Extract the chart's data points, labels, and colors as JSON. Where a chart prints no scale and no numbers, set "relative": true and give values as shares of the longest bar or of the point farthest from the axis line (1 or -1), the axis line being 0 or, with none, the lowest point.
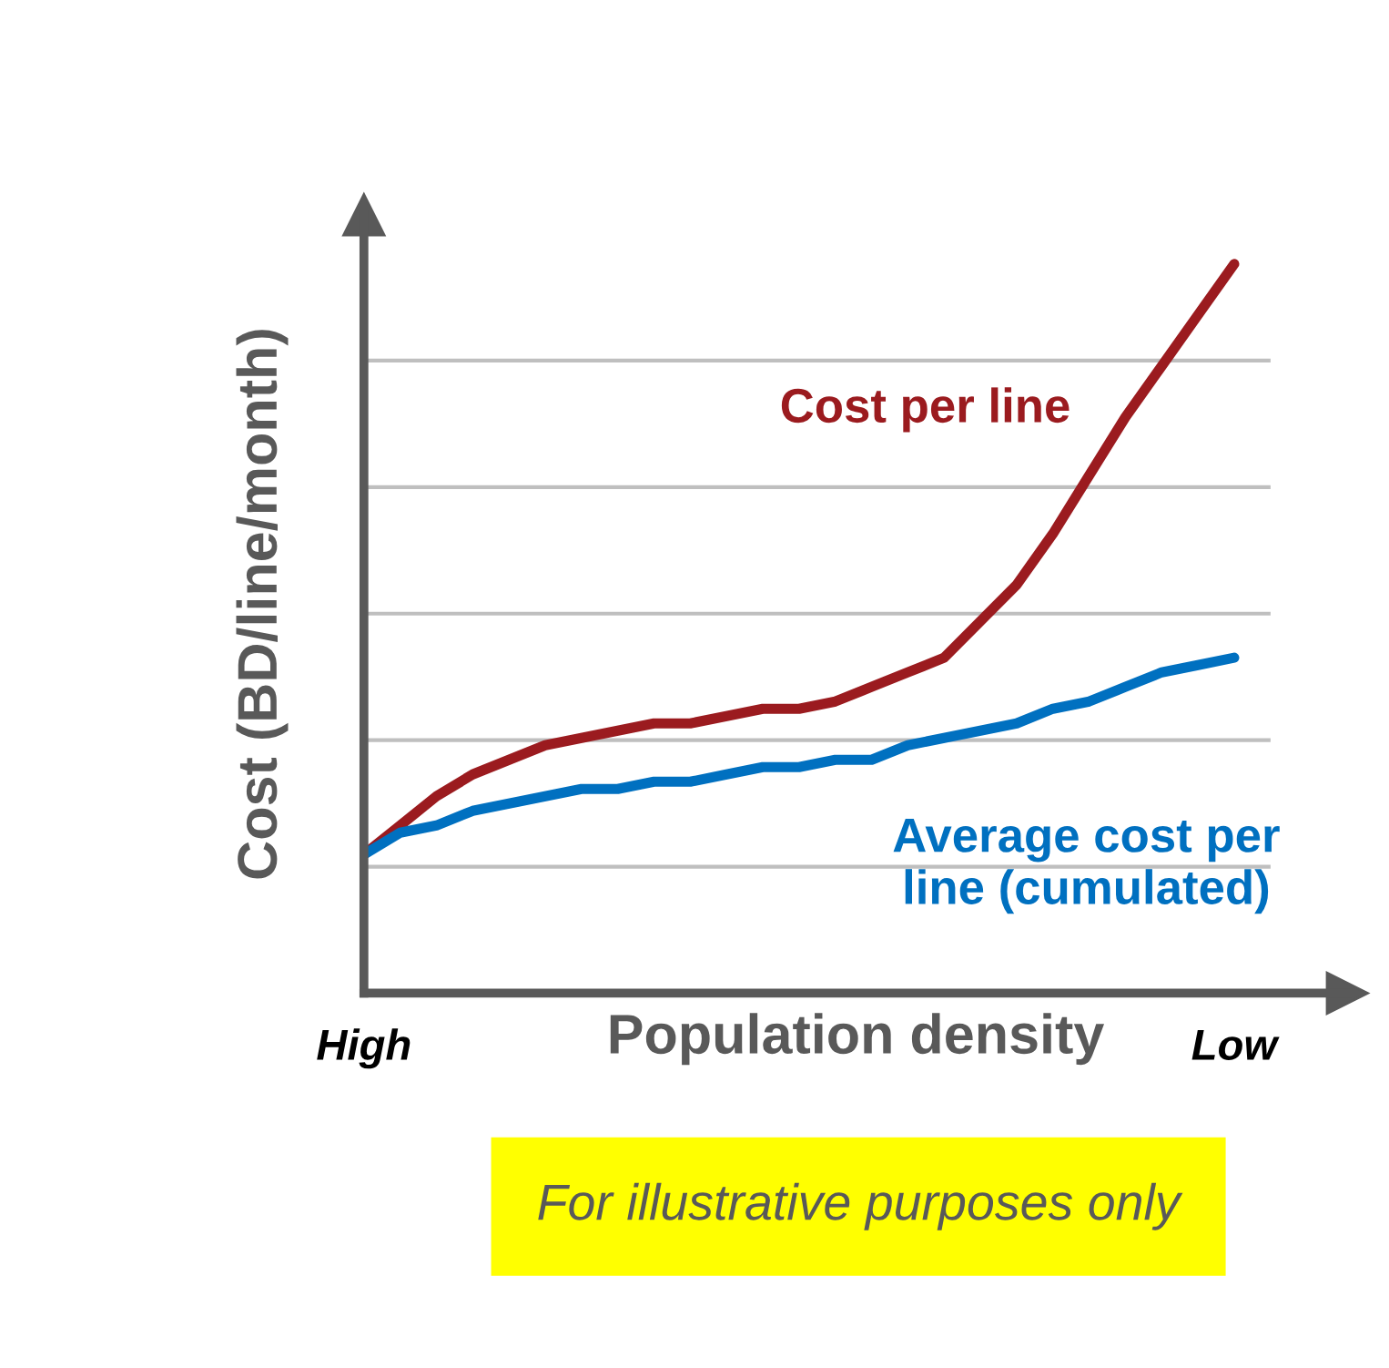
{
  "chart_data": {
    "type": "line",
    "relative": true,
    "xlabel": "Population density",
    "ylabel": "Cost (BD/line/month)",
    "categories": [
      "High",
      null,
      null,
      null,
      null,
      null,
      null,
      null,
      null,
      null,
      null,
      null,
      null,
      null,
      null,
      null,
      null,
      null,
      null,
      null,
      null,
      null,
      null,
      null,
      "Low"
    ],
    "grid": "y",
    "series": [
      {
        "name": "Cost per line",
        "color": "#9b1b1f",
        "values": [
          0.19,
          0.23,
          0.27,
          0.3,
          0.32,
          0.34,
          0.35,
          0.36,
          0.37,
          0.37,
          0.38,
          0.39,
          0.39,
          0.4,
          0.42,
          0.44,
          0.46,
          0.51,
          0.56,
          0.63,
          0.71,
          0.79,
          0.86,
          0.93,
          1
        ]
      },
      {
        "name": "Average cost per line (cumulated)",
        "color": "#0070c0",
        "values": [
          0.19,
          0.22,
          0.23,
          0.25,
          0.26,
          0.27,
          0.28,
          0.28,
          0.29,
          0.29,
          0.3,
          0.31,
          0.31,
          0.32,
          0.32,
          0.34,
          0.35,
          0.36,
          0.37,
          0.39,
          0.4,
          0.42,
          0.44,
          0.45,
          0.46
        ]
      }
    ],
    "annotations": [
      "For illustrative purposes only"
    ]
  }
}
